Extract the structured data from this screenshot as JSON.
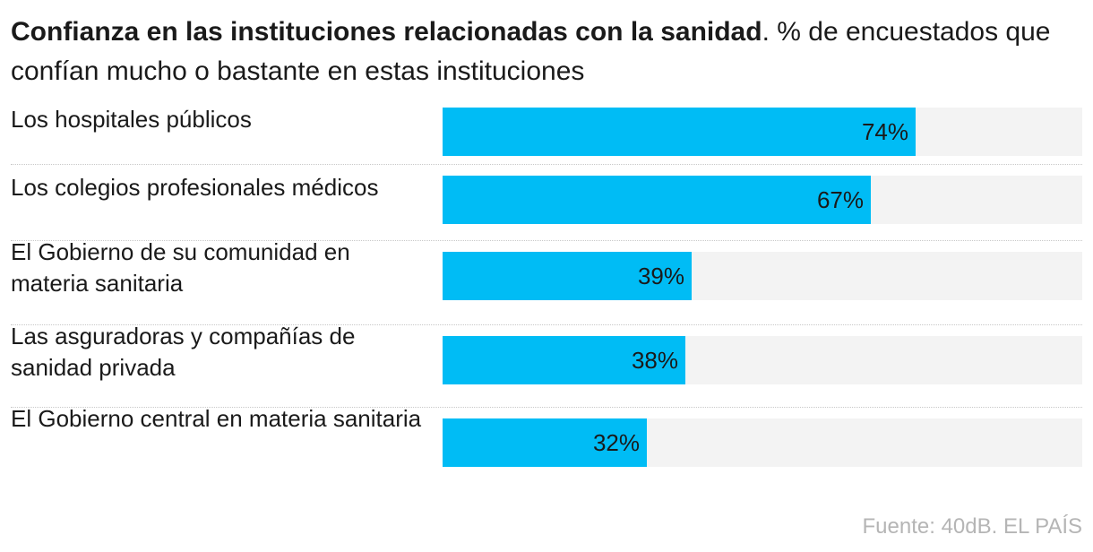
{
  "header": {
    "title": "Confianza en las instituciones relacionadas con la sanidad",
    "subtitle": ". % de encuestados que confían mucho o bastante en estas instituciones"
  },
  "chart_data": {
    "type": "bar",
    "orientation": "horizontal",
    "title": "Confianza en las instituciones relacionadas con la sanidad",
    "subtitle": "% de encuestados que confían mucho o bastante en estas instituciones",
    "categories": [
      "Los hospitales públicos",
      "Los colegios profesionales médicos",
      "El Gobierno de su comunidad en materia sanitaria",
      "Las asguradoras y compañías de sanidad privada",
      "El Gobierno central en materia sanitaria"
    ],
    "values": [
      74,
      67,
      39,
      38,
      32
    ],
    "value_labels": [
      "74%",
      "67%",
      "39%",
      "38%",
      "32%"
    ],
    "unit": "%",
    "xlim": [
      0,
      100
    ],
    "grid": false,
    "legend": "none",
    "colors": {
      "bar": "#00bcf5",
      "track": "#f3f3f3"
    }
  },
  "source": "Fuente: 40dB. EL PAÍS"
}
